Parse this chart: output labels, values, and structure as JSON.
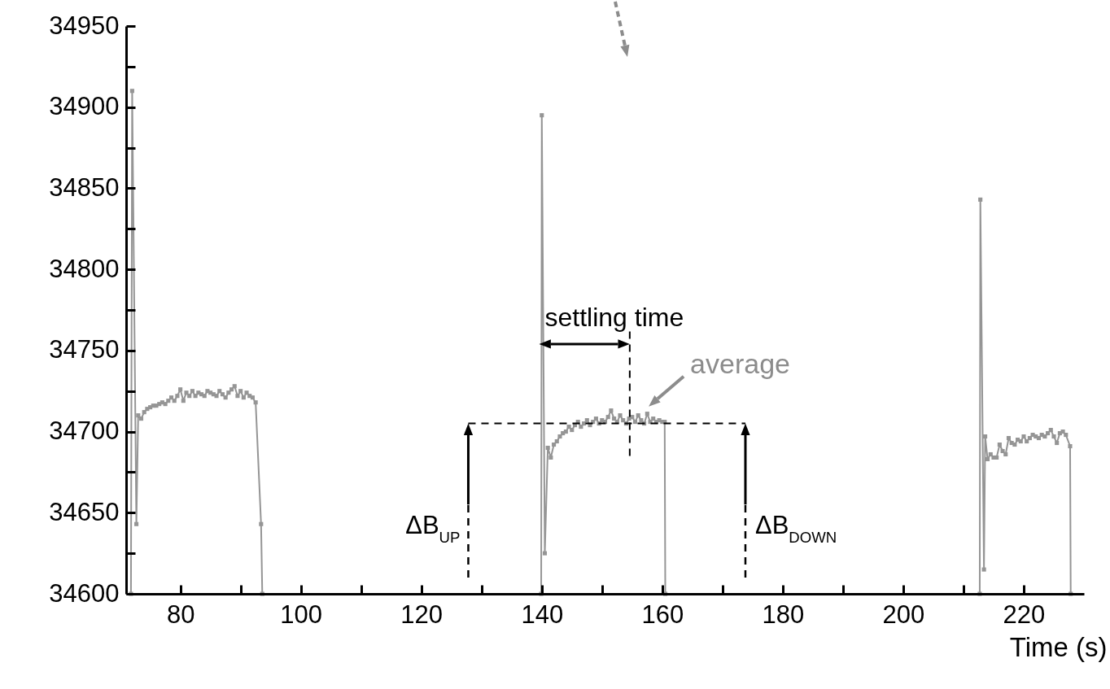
{
  "chart_data": {
    "type": "line",
    "xlabel": "Time (s)",
    "color": "#959595",
    "marker": "square",
    "line_style": "solid",
    "grid": false,
    "x": [
      71.8,
      72,
      72.7,
      73,
      73.5,
      74,
      74.5,
      75,
      75.5,
      76,
      76.5,
      77,
      77.5,
      78,
      78.5,
      79,
      79.5,
      80,
      80.5,
      81,
      81.5,
      82,
      82.5,
      83,
      83.5,
      84,
      84.5,
      85,
      85.5,
      86,
      86.5,
      87,
      87.5,
      88,
      88.5,
      89,
      89.5,
      90,
      90.5,
      91,
      91.5,
      92,
      92.5,
      93.4,
      93.6,
      139.9,
      140,
      140.5,
      141,
      141.5,
      142,
      142.5,
      143,
      143.5,
      144,
      144.5,
      145,
      145.5,
      146,
      146.5,
      147,
      147.5,
      148,
      148.5,
      149,
      149.5,
      150,
      150.5,
      151,
      151.5,
      152,
      152.5,
      153,
      153.5,
      154,
      154.5,
      155,
      155.5,
      156,
      156.5,
      157,
      157.5,
      158,
      158.5,
      159,
      159.5,
      160,
      160.4,
      160.5,
      212.7,
      212.8,
      213.4,
      213.6,
      214,
      214.5,
      215,
      215.5,
      216,
      216.5,
      217,
      217.5,
      218,
      218.5,
      219,
      219.5,
      220,
      220.5,
      221,
      221.5,
      222,
      222.5,
      223,
      223.5,
      224,
      224.5,
      225,
      225.5,
      226,
      226.5,
      227,
      227.7,
      227.8
    ],
    "values": [
      34600,
      34910,
      34643,
      34710,
      34708,
      34712,
      34714,
      34715,
      34716,
      34716,
      34717,
      34718,
      34717,
      34719,
      34721,
      34719,
      34722,
      34726,
      34719,
      34724,
      34722,
      34725,
      34722,
      34724,
      34723,
      34722,
      34725,
      34724,
      34723,
      34722,
      34725,
      34723,
      34721,
      34724,
      34726,
      34728,
      34722,
      34725,
      34721,
      34724,
      34722,
      34721,
      34718,
      34643,
      34600,
      34600,
      34895,
      34625,
      34690,
      34684,
      34692,
      34694,
      34697,
      34699,
      34700,
      34703,
      34701,
      34704,
      34706,
      34703,
      34705,
      34707,
      34704,
      34706,
      34708,
      34705,
      34707,
      34706,
      34709,
      34713,
      34708,
      34706,
      34710,
      34707,
      34705,
      34708,
      34709,
      34706,
      34710,
      34707,
      34705,
      34711,
      34706,
      34708,
      34706,
      34707,
      34706,
      34706,
      34600,
      34600,
      34843,
      34615,
      34697,
      34683,
      34686,
      34684,
      34684,
      34692,
      34688,
      34686,
      34696,
      34693,
      34692,
      34695,
      34694,
      34697,
      34694,
      34696,
      34698,
      34697,
      34696,
      34698,
      34697,
      34699,
      34701,
      34697,
      34693,
      34699,
      34700,
      34698,
      34691,
      34600
    ],
    "xlim": [
      71,
      230
    ],
    "xticks": [
      80,
      {
        "value": 90,
        "label": null
      },
      100,
      {
        "value": 110,
        "label": null
      },
      120,
      {
        "value": 130,
        "label": null
      },
      140,
      {
        "value": 150,
        "label": null
      },
      160,
      {
        "value": 170,
        "label": null
      },
      180,
      {
        "value": 190,
        "label": null
      },
      200,
      {
        "value": 210,
        "label": null
      },
      220
    ],
    "ylim": [
      34600,
      34950
    ],
    "yticks": [
      34600,
      {
        "value": 34625,
        "label": null
      },
      34650,
      {
        "value": 34675,
        "label": null
      },
      34700,
      {
        "value": 34725,
        "label": null
      },
      34750,
      {
        "value": 34775,
        "label": null
      },
      34800,
      {
        "value": 34825,
        "label": null
      },
      34850,
      {
        "value": 34875,
        "label": null
      },
      34900,
      {
        "value": 34925,
        "label": null
      },
      34950
    ],
    "ref_lines": [
      {
        "axis": "y",
        "value": 34705,
        "line_style": "dashed",
        "color": "#000000"
      },
      {
        "axis": "x",
        "value": 154.6,
        "line_style": "dashed",
        "color": "#000000"
      }
    ],
    "annotations": [
      {
        "text": "settling time",
        "x": 140.5,
        "y": 34765
      },
      {
        "text": "average",
        "x": 157.2,
        "y": 34714
      },
      "ΔB$_{UP}$",
      "ΔB$_{DOWN}$"
    ]
  }
}
